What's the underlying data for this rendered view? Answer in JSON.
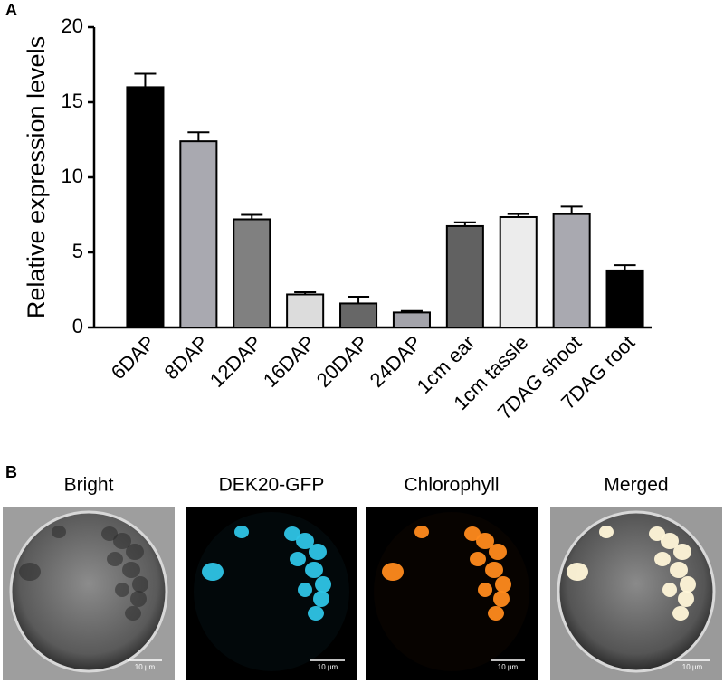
{
  "chart_data": {
    "type": "bar",
    "panel": "A",
    "ylabel": "Relative expression levels",
    "categories": [
      "6DAP",
      "8DAP",
      "12DAP",
      "16DAP",
      "20DAP",
      "24DAP",
      "1cm ear",
      "1cm tassle",
      "7DAG shoot",
      "7DAG root"
    ],
    "values": [
      16.0,
      12.4,
      7.2,
      2.2,
      1.6,
      1.0,
      6.75,
      7.35,
      7.55,
      3.8
    ],
    "errors": [
      0.9,
      0.6,
      0.3,
      0.15,
      0.45,
      0.1,
      0.25,
      0.2,
      0.5,
      0.35
    ],
    "colors": [
      "#000000",
      "#a9a9b0",
      "#808080",
      "#dcdcdc",
      "#676767",
      "#a3a3aa",
      "#616161",
      "#ececec",
      "#a9a9b0",
      "#000000"
    ],
    "ylim": [
      0,
      20
    ],
    "yticks": [
      0,
      5,
      10,
      15,
      20
    ]
  },
  "panel_b": {
    "panel": "B",
    "images": [
      {
        "title": "Bright",
        "scale_bar": "10 μm"
      },
      {
        "title": "DEK20-GFP",
        "scale_bar": "10 μm"
      },
      {
        "title": "Chlorophyll",
        "scale_bar": "10 μm"
      },
      {
        "title": "Merged",
        "scale_bar": "10 μm"
      }
    ]
  }
}
